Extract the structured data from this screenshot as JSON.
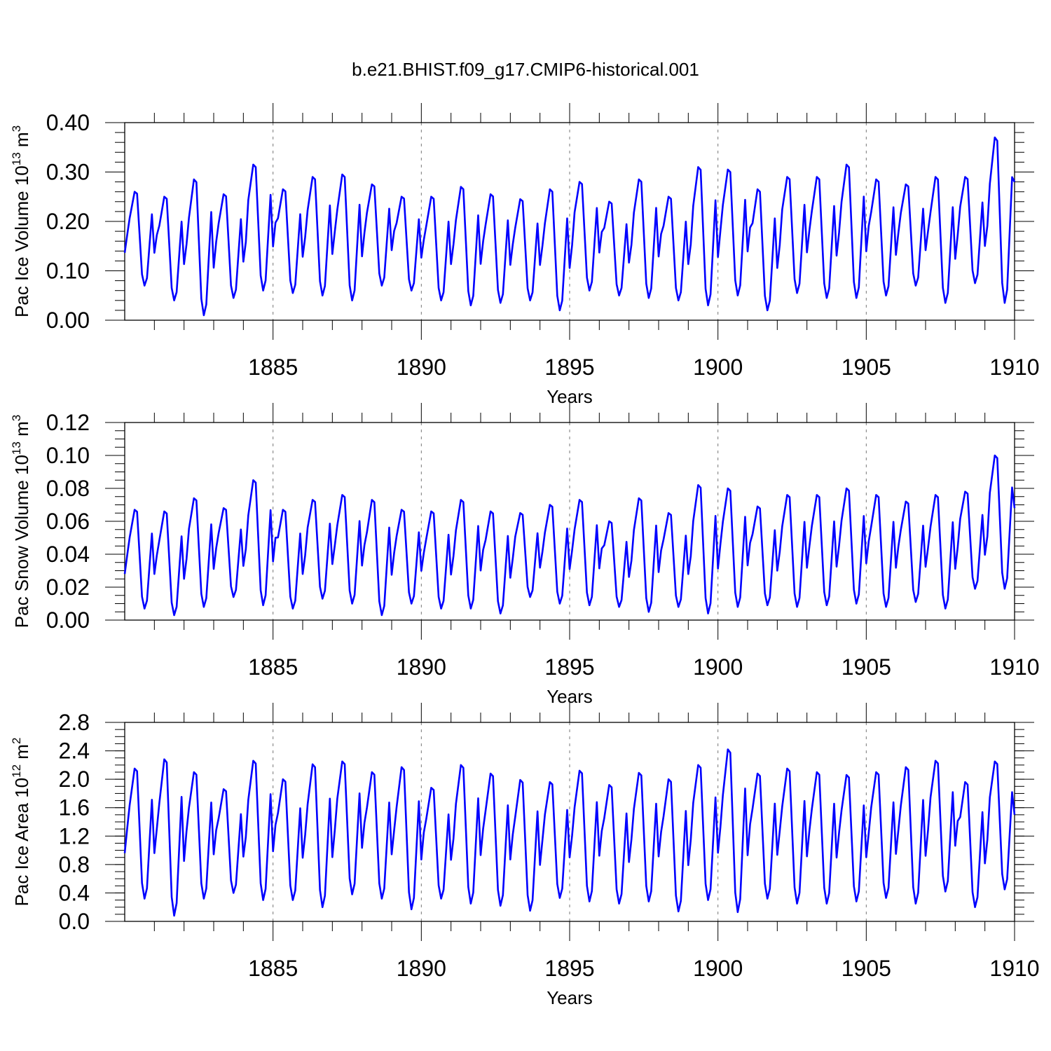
{
  "title": "b.e21.BHIST.f09_g17.CMIP6-historical.001",
  "colors": {
    "series": "#0000ff",
    "axis": "#000000",
    "grid": "#777777"
  },
  "chart_data": [
    {
      "type": "line",
      "ylabel": "Pac Ice Volume 10",
      "ylabel_exp": "13",
      "ylabel_unit": " m",
      "ylabel_unit_exp": "3",
      "xlabel": "Years",
      "xlim": [
        1880,
        1910
      ],
      "ylim": [
        0,
        0.4
      ],
      "yticks": [
        0,
        0.1,
        0.2,
        0.3,
        0.4
      ],
      "ytick_labels": [
        "0.00",
        "0.10",
        "0.20",
        "0.30",
        "0.40"
      ],
      "ytick_minor_step": 0.02,
      "xticks": [
        1885,
        1890,
        1895,
        1900,
        1905,
        1910
      ],
      "xtick_labels": [
        "1885",
        "1890",
        "1895",
        "1900",
        "1905",
        "1910"
      ],
      "seasonal": {
        "min": [
          0.07,
          0.04,
          0.01,
          0.045,
          0.06,
          0.055,
          0.05,
          0.04,
          0.07,
          0.06,
          0.04,
          0.03,
          0.035,
          0.04,
          0.02,
          0.06,
          0.05,
          0.045,
          0.04,
          0.03,
          0.05,
          0.02,
          0.055,
          0.045,
          0.045,
          0.05,
          0.07,
          0.035,
          0.075,
          0.035
        ],
        "max": [
          0.26,
          0.25,
          0.285,
          0.255,
          0.315,
          0.265,
          0.29,
          0.295,
          0.275,
          0.25,
          0.25,
          0.27,
          0.255,
          0.245,
          0.265,
          0.28,
          0.24,
          0.285,
          0.25,
          0.31,
          0.305,
          0.265,
          0.29,
          0.29,
          0.315,
          0.285,
          0.275,
          0.29,
          0.29,
          0.37
        ]
      },
      "end_value": 0.28
    },
    {
      "type": "line",
      "ylabel": "Pac Snow Volume 10",
      "ylabel_exp": "13",
      "ylabel_unit": " m",
      "ylabel_unit_exp": "3",
      "xlabel": "Years",
      "xlim": [
        1880,
        1910
      ],
      "ylim": [
        0,
        0.12
      ],
      "yticks": [
        0,
        0.02,
        0.04,
        0.06,
        0.08,
        0.1,
        0.12
      ],
      "ytick_labels": [
        "0.00",
        "0.02",
        "0.04",
        "0.06",
        "0.08",
        "0.10",
        "0.12"
      ],
      "ytick_minor_step": 0.005,
      "xticks": [
        1885,
        1890,
        1895,
        1900,
        1905,
        1910
      ],
      "xtick_labels": [
        "1885",
        "1890",
        "1895",
        "1900",
        "1905",
        "1910"
      ],
      "seasonal": {
        "min": [
          0.007,
          0.003,
          0.008,
          0.014,
          0.009,
          0.007,
          0.013,
          0.01,
          0.003,
          0.01,
          0.007,
          0.007,
          0.004,
          0.014,
          0.01,
          0.009,
          0.008,
          0.005,
          0.008,
          0.004,
          0.008,
          0.009,
          0.008,
          0.009,
          0.01,
          0.008,
          0.011,
          0.007,
          0.019,
          0.019
        ],
        "max": [
          0.067,
          0.066,
          0.074,
          0.068,
          0.085,
          0.067,
          0.073,
          0.076,
          0.073,
          0.067,
          0.066,
          0.073,
          0.066,
          0.065,
          0.07,
          0.073,
          0.06,
          0.074,
          0.065,
          0.082,
          0.08,
          0.069,
          0.076,
          0.076,
          0.08,
          0.076,
          0.072,
          0.076,
          0.078,
          0.1
        ]
      },
      "end_value": 0.068
    },
    {
      "type": "line",
      "ylabel": "Pac Ice Area 10",
      "ylabel_exp": "12",
      "ylabel_unit": " m",
      "ylabel_unit_exp": "2",
      "xlabel": "Years",
      "xlim": [
        1880,
        1910
      ],
      "ylim": [
        0,
        2.8
      ],
      "yticks": [
        0,
        0.4,
        0.8,
        1.2,
        1.6,
        2.0,
        2.4,
        2.8
      ],
      "ytick_labels": [
        "0.0",
        "0.4",
        "0.8",
        "1.2",
        "1.6",
        "2.0",
        "2.4",
        "2.8"
      ],
      "ytick_minor_step": 0.1,
      "xticks": [
        1885,
        1890,
        1895,
        1900,
        1905,
        1910
      ],
      "xtick_labels": [
        "1885",
        "1890",
        "1895",
        "1900",
        "1905",
        "1910"
      ],
      "seasonal": {
        "min": [
          0.32,
          0.08,
          0.32,
          0.4,
          0.3,
          0.3,
          0.2,
          0.38,
          0.32,
          0.17,
          0.32,
          0.25,
          0.22,
          0.15,
          0.33,
          0.28,
          0.25,
          0.28,
          0.14,
          0.3,
          0.13,
          0.32,
          0.25,
          0.25,
          0.28,
          0.33,
          0.25,
          0.42,
          0.2,
          0.45
        ],
        "max": [
          2.15,
          2.28,
          2.1,
          1.86,
          2.26,
          2.0,
          2.21,
          2.25,
          2.1,
          2.17,
          1.88,
          2.2,
          2.08,
          1.99,
          1.96,
          2.12,
          1.92,
          2.09,
          2.0,
          2.2,
          2.42,
          2.08,
          2.15,
          2.1,
          2.06,
          2.1,
          2.17,
          2.26,
          1.96,
          2.25
        ]
      },
      "end_value": 1.5
    }
  ]
}
